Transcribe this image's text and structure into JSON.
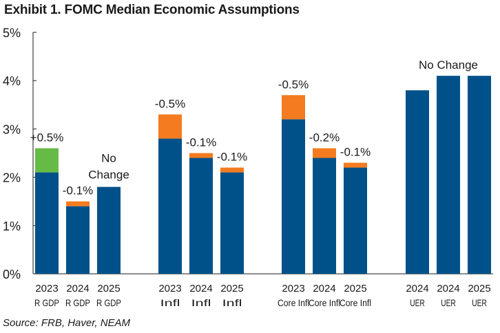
{
  "chart_data": {
    "type": "bar",
    "title": "Exhibit 1. FOMC Median Economic Assumptions",
    "source": "Source: FRB, Haver, NEAM",
    "ylim": [
      0,
      5
    ],
    "yticks": [
      "0%",
      "1%",
      "2%",
      "3%",
      "4%",
      "5%"
    ],
    "colors": {
      "base": "#005189",
      "increase": "#66BB47",
      "decrease": "#F47B20"
    },
    "groups": [
      {
        "name": "R GDP",
        "bars": [
          {
            "year": "2023",
            "label": "R GDP",
            "base": 2.1,
            "change_segment": 0.5,
            "change_type": "increase"
          },
          {
            "year": "2024",
            "label": "R GDP",
            "base": 1.4,
            "change_segment": 0.1,
            "change_type": "decrease"
          },
          {
            "year": "2025",
            "label": "R GDP",
            "base": 1.8,
            "change_segment": 0,
            "change_type": "none"
          }
        ]
      },
      {
        "name": "Infl",
        "bars": [
          {
            "year": "2023",
            "label": "Infl",
            "base": 2.8,
            "change_segment": 0.5,
            "change_type": "decrease"
          },
          {
            "year": "2024",
            "label": "Infl",
            "base": 2.4,
            "change_segment": 0.1,
            "change_type": "decrease"
          },
          {
            "year": "2025",
            "label": "Infl",
            "base": 2.1,
            "change_segment": 0.1,
            "change_type": "decrease"
          }
        ]
      },
      {
        "name": "Core Infl",
        "bars": [
          {
            "year": "2023",
            "label": "Core Infl",
            "base": 3.2,
            "change_segment": 0.5,
            "change_type": "decrease"
          },
          {
            "year": "2024",
            "label": "Core Infl",
            "base": 2.4,
            "change_segment": 0.2,
            "change_type": "decrease"
          },
          {
            "year": "2025",
            "label": "Core Infl",
            "base": 2.2,
            "change_segment": 0.1,
            "change_type": "decrease"
          }
        ]
      },
      {
        "name": "UER",
        "bars": [
          {
            "year": "2024",
            "label": "UER",
            "base": 3.8,
            "change_segment": 0,
            "change_type": "none"
          },
          {
            "year": "2024",
            "label": "UER",
            "base": 4.1,
            "change_segment": 0,
            "change_type": "none"
          },
          {
            "year": "2025",
            "label": "UER",
            "base": 4.1,
            "change_segment": 0,
            "change_type": "none"
          }
        ]
      }
    ],
    "annotations": [
      {
        "text": "+0.5%",
        "group": 0,
        "bar": 0
      },
      {
        "text": "-0.1%",
        "group": 0,
        "bar": 1
      },
      {
        "text": "No",
        "group": 0,
        "bar": 2,
        "line": 0
      },
      {
        "text": "Change",
        "group": 0,
        "bar": 2,
        "line": 1
      },
      {
        "text": "-0.5%",
        "group": 1,
        "bar": 0
      },
      {
        "text": "-0.1%",
        "group": 1,
        "bar": 1
      },
      {
        "text": "-0.1%",
        "group": 1,
        "bar": 2
      },
      {
        "text": "-0.5%",
        "group": 2,
        "bar": 0
      },
      {
        "text": "-0.2%",
        "group": 2,
        "bar": 1
      },
      {
        "text": "-0.1%",
        "group": 2,
        "bar": 2
      },
      {
        "text": "No Change",
        "group": 3,
        "bar": 1
      }
    ]
  }
}
